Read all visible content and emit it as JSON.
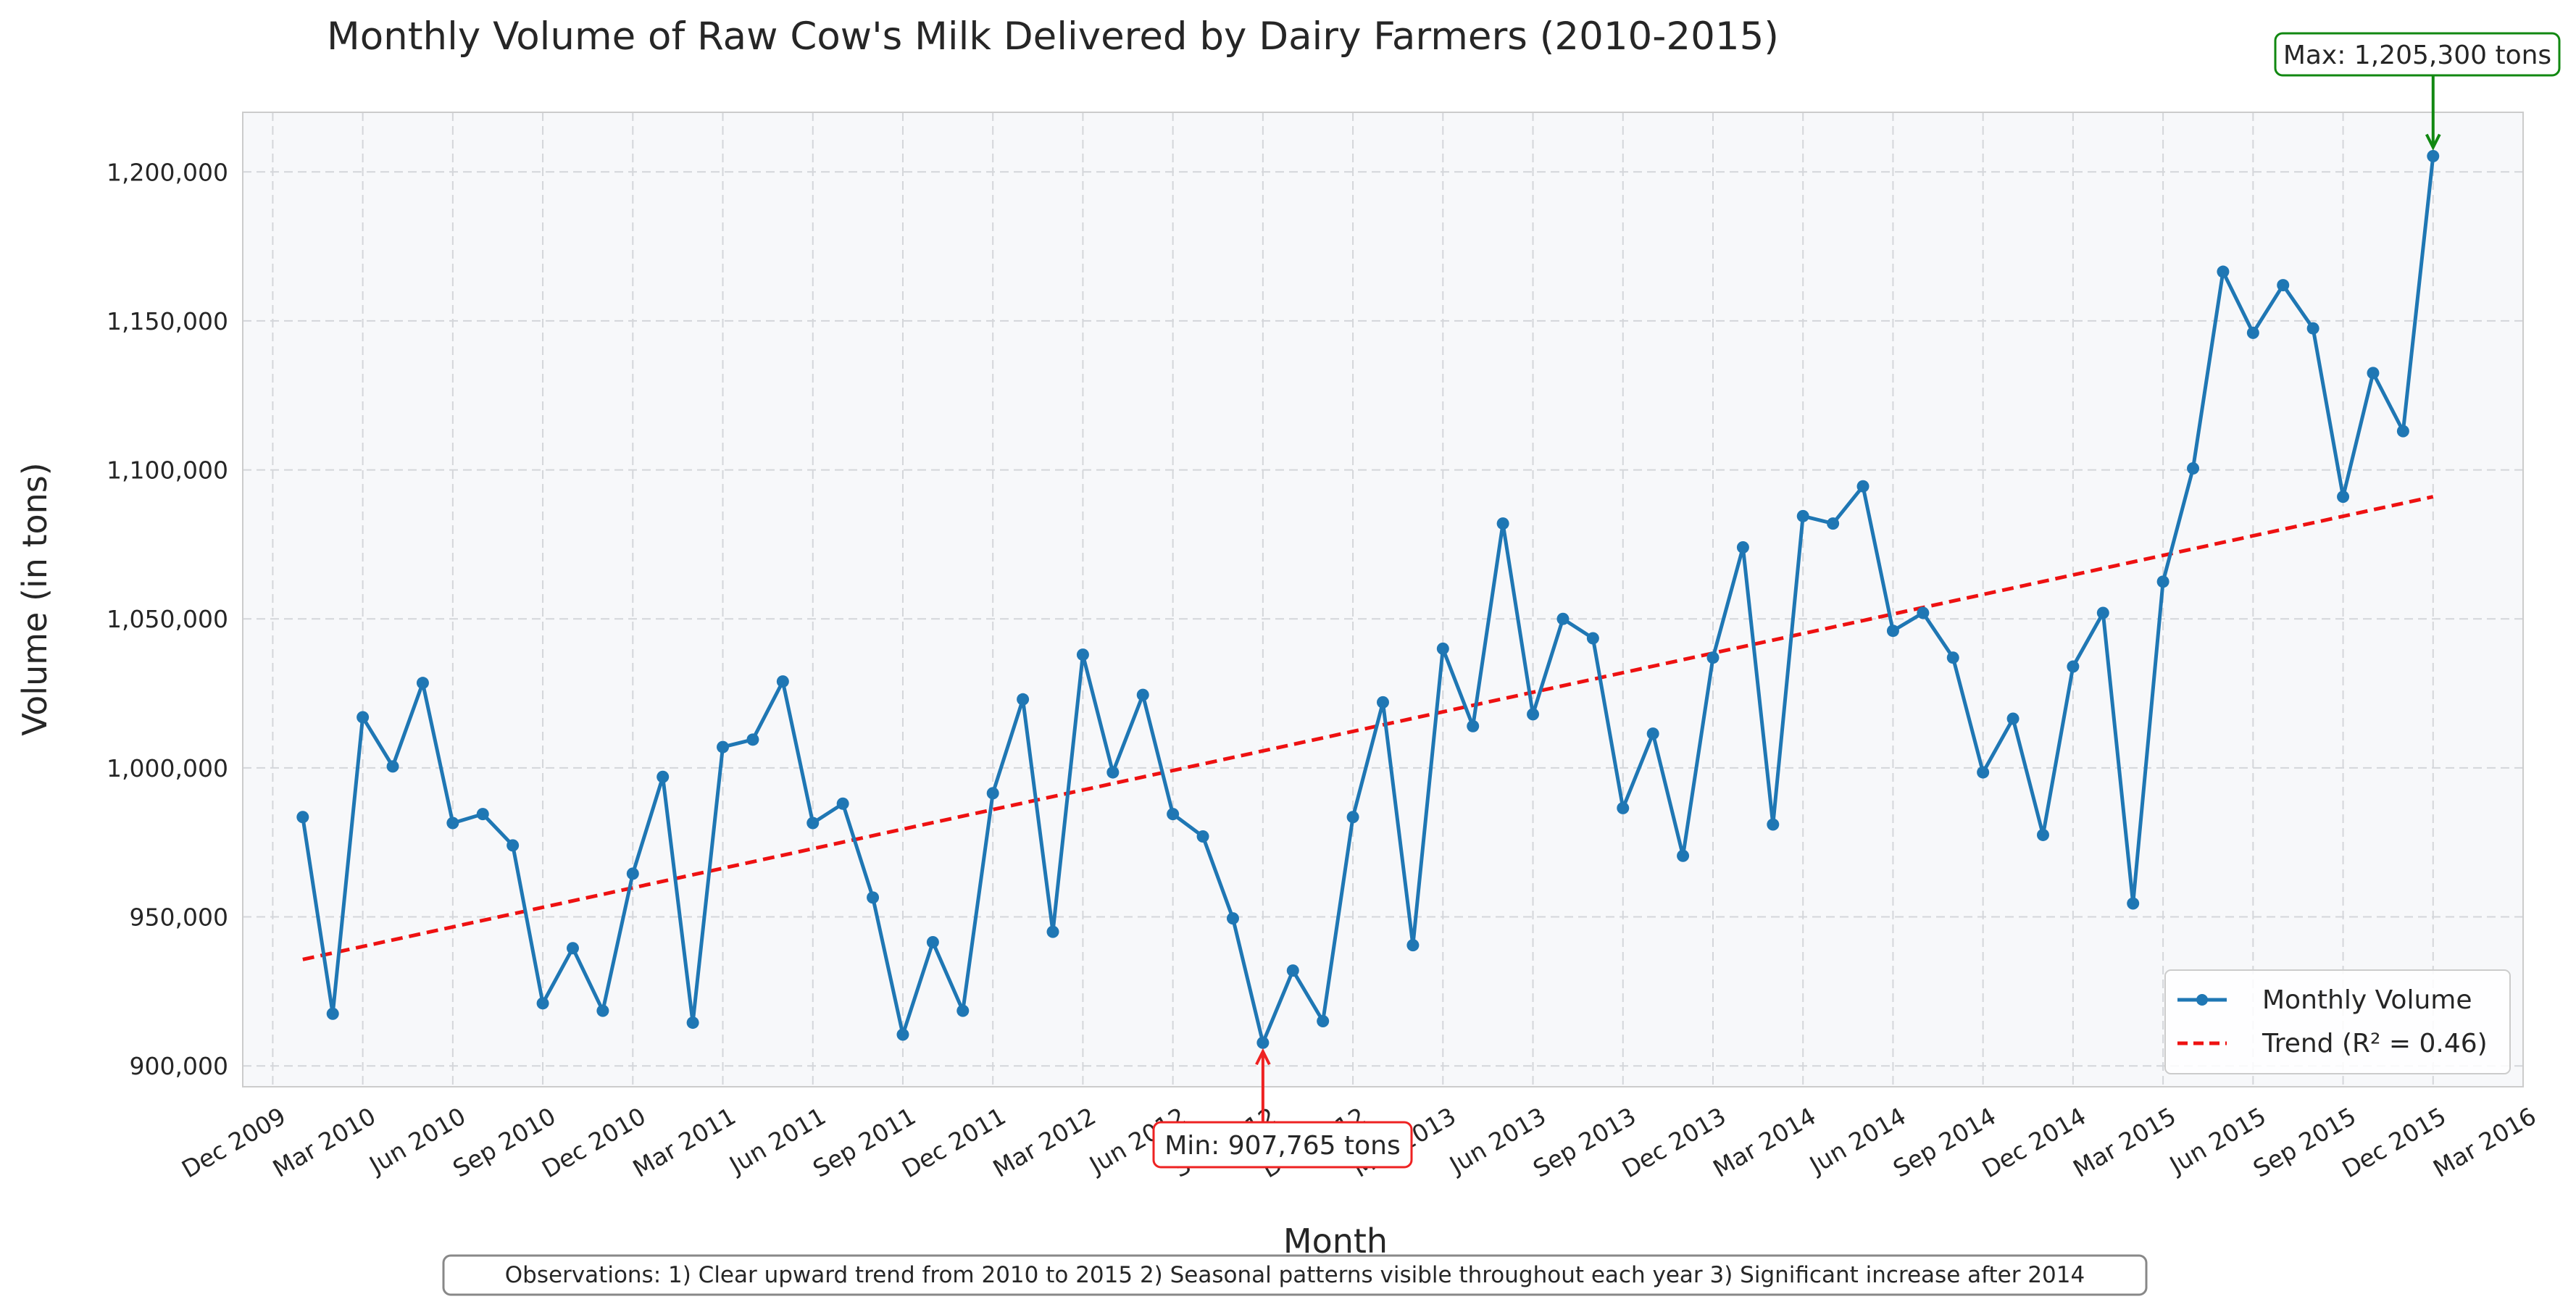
{
  "colors": {
    "series": "#1f77b4",
    "trend": "#ee1111",
    "plot_bg": "#f7f8fa",
    "grid": "#d4d6da",
    "max_annotation": "#118811",
    "min_annotation": "#ee2222"
  },
  "chart_data": {
    "type": "line",
    "title": "Monthly Volume of Raw Cow's Milk Delivered by Dairy Farmers (2010-2015)",
    "xlabel": "Month",
    "ylabel": "Volume (in tons)",
    "grid": true,
    "legend_position": "lower-right",
    "x_start": "Jan 2010",
    "x_range_months": [
      -2,
      74
    ],
    "ylim": [
      893000,
      1220000
    ],
    "yticks": [
      900000,
      950000,
      1000000,
      1050000,
      1100000,
      1150000,
      1200000
    ],
    "ytick_labels": [
      "900,000",
      "950,000",
      "1,000,000",
      "1,050,000",
      "1,100,000",
      "1,150,000",
      "1,200,000"
    ],
    "xticks": [
      {
        "month_index": -1,
        "label": "Dec 2009"
      },
      {
        "month_index": 2,
        "label": "Mar 2010"
      },
      {
        "month_index": 5,
        "label": "Jun 2010"
      },
      {
        "month_index": 8,
        "label": "Sep 2010"
      },
      {
        "month_index": 11,
        "label": "Dec 2010"
      },
      {
        "month_index": 14,
        "label": "Mar 2011"
      },
      {
        "month_index": 17,
        "label": "Jun 2011"
      },
      {
        "month_index": 20,
        "label": "Sep 2011"
      },
      {
        "month_index": 23,
        "label": "Dec 2011"
      },
      {
        "month_index": 26,
        "label": "Mar 2012"
      },
      {
        "month_index": 29,
        "label": "Jun 2012"
      },
      {
        "month_index": 32,
        "label": "Sep 2012"
      },
      {
        "month_index": 35,
        "label": "Dec 2012"
      },
      {
        "month_index": 38,
        "label": "Mar 2013"
      },
      {
        "month_index": 41,
        "label": "Jun 2013"
      },
      {
        "month_index": 44,
        "label": "Sep 2013"
      },
      {
        "month_index": 47,
        "label": "Dec 2013"
      },
      {
        "month_index": 50,
        "label": "Mar 2014"
      },
      {
        "month_index": 53,
        "label": "Jun 2014"
      },
      {
        "month_index": 56,
        "label": "Sep 2014"
      },
      {
        "month_index": 59,
        "label": "Dec 2014"
      },
      {
        "month_index": 62,
        "label": "Mar 2015"
      },
      {
        "month_index": 65,
        "label": "Jun 2015"
      },
      {
        "month_index": 68,
        "label": "Sep 2015"
      },
      {
        "month_index": 71,
        "label": "Dec 2015"
      },
      {
        "month_index": 74,
        "label": "Mar 2016"
      }
    ],
    "series": [
      {
        "name": "Monthly Volume",
        "style": "line-with-markers",
        "values": [
          983500,
          917500,
          1017000,
          1000500,
          1028500,
          981500,
          984500,
          974000,
          921000,
          939500,
          918500,
          964500,
          997000,
          914500,
          1007000,
          1009500,
          1029000,
          981500,
          988000,
          956500,
          910500,
          941500,
          918500,
          991500,
          1023000,
          945000,
          1038000,
          998500,
          1024500,
          984500,
          977000,
          949500,
          907765,
          932000,
          915000,
          983500,
          1022000,
          940500,
          1040000,
          1014000,
          1082000,
          1018000,
          1050000,
          1043500,
          986500,
          1011500,
          970500,
          1037000,
          1074000,
          981000,
          1084500,
          1082000,
          1094500,
          1046000,
          1052000,
          1037000,
          998500,
          1016500,
          977500,
          1034000,
          1052000,
          954500,
          1062500,
          1100500,
          1166500,
          1146000,
          1162000,
          1147500,
          1091000,
          1132500,
          1113000,
          1205300
        ]
      },
      {
        "name": "Trend (R² = 0.46)",
        "style": "dashed-line",
        "start": 935700,
        "end": 1091000
      }
    ],
    "annotations": {
      "max": {
        "text": "Max: 1,205,300 tons",
        "month_index": 71,
        "value": 1205300
      },
      "min": {
        "text": "Min: 907,765 tons",
        "month_index": 32,
        "value": 907765
      }
    },
    "observations": "Observations: 1) Clear upward trend from 2010 to 2015  2) Seasonal patterns visible throughout each year  3) Significant increase after 2014"
  }
}
